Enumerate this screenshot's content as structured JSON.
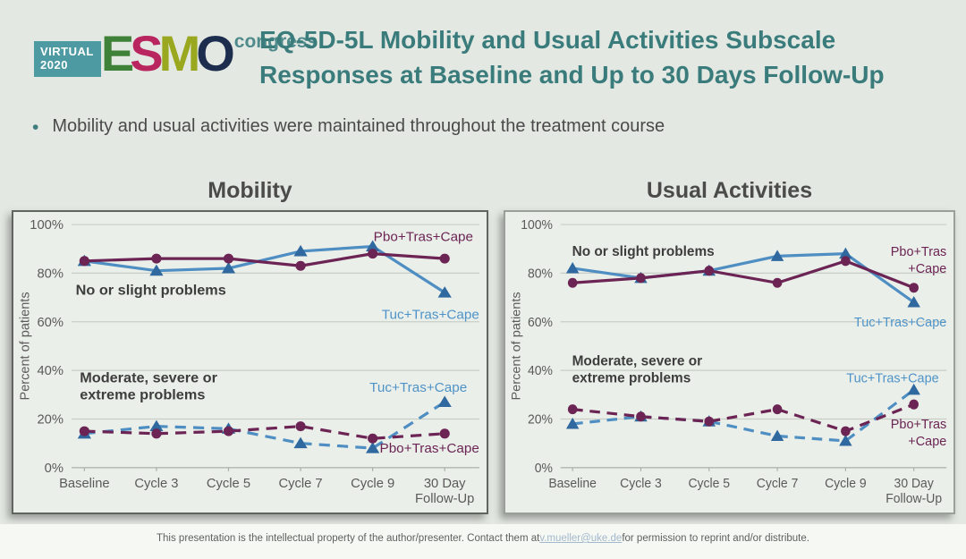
{
  "logo": {
    "virtual_label": "VIRTUAL",
    "year": "2020",
    "esmo_letters": [
      {
        "char": "E",
        "color": "#3f8138"
      },
      {
        "char": "S",
        "color": "#b8255f"
      },
      {
        "char": "M",
        "color": "#9aa81f"
      },
      {
        "char": "O",
        "color": "#1d2d4e"
      }
    ],
    "congress_label": "congress"
  },
  "header": {
    "title_line1": "EQ-5D-5L Mobility and Usual Activities Subscale",
    "title_line2": "Responses at Baseline and Up to 30 Days Follow-Up"
  },
  "bullet": {
    "marker": "•",
    "text": "Mobility and usual activities were maintained throughout the treatment course"
  },
  "colors": {
    "maroon": "#6b2454",
    "blue_line": "#4e8ec2",
    "blue_marker": "#2f699f",
    "blue_label": "#4e93c8",
    "dark_text": "#3d3d3d",
    "axis_text": "#5a5a5a",
    "grid": "#c8cec7",
    "axis": "#a9afa8",
    "teal_accent": "#3a7b7c",
    "slide_bg": "#e4e8e2",
    "panel_bg": "#ebefe9"
  },
  "chart_data": [
    {
      "type": "line",
      "title": "Mobility",
      "xlabel": "",
      "ylabel": "Percent of patients",
      "ylim": [
        0,
        100
      ],
      "yticks": [
        0,
        20,
        40,
        60,
        80,
        100
      ],
      "ytick_suffix": "%",
      "grid": true,
      "legend_position": "inline-labels",
      "categories": [
        "Baseline",
        "Cycle 3",
        "Cycle 5",
        "Cycle 7",
        "Cycle 9",
        "30 Day\nFollow-Up"
      ],
      "series": [
        {
          "name": "Tuc+Tras+Cape",
          "group": "No or slight problems",
          "style": "solid",
          "marker": "triangle",
          "color_key": "blue",
          "values": [
            85,
            81,
            82,
            89,
            91,
            72
          ]
        },
        {
          "name": "Pbo+Tras+Cape",
          "group": "No or slight problems",
          "style": "solid",
          "marker": "circle",
          "color_key": "maroon",
          "values": [
            85,
            86,
            86,
            83,
            88,
            86
          ]
        },
        {
          "name": "Tuc+Tras+Cape",
          "group": "Moderate, severe or extreme problems",
          "style": "dashed",
          "marker": "triangle",
          "color_key": "blue",
          "values": [
            14,
            17,
            16,
            10,
            8,
            27
          ]
        },
        {
          "name": "Pbo+Tras+Cape",
          "group": "Moderate, severe or extreme problems",
          "style": "dashed",
          "marker": "circle",
          "color_key": "maroon",
          "values": [
            15,
            14,
            15,
            17,
            12,
            14
          ]
        }
      ],
      "annotations": [
        {
          "text": "No or slight problems",
          "x": 0.01,
          "y": 73,
          "align": "start",
          "bold": true,
          "color_key": "dark_text"
        },
        {
          "text": "Moderate, severe or\nextreme problems",
          "x": 0.02,
          "y": 37,
          "align": "start",
          "bold": true,
          "color_key": "dark_text"
        },
        {
          "text": "Pbo+Tras+Cape",
          "x": 0.985,
          "y": 95,
          "align": "end",
          "bold": false,
          "color_key": "maroon"
        },
        {
          "text": "Tuc+Tras+Cape",
          "x": 1.0,
          "y": 63,
          "align": "end",
          "bold": false,
          "color_key": "blue_label"
        },
        {
          "text": "Tuc+Tras+Cape",
          "x": 0.97,
          "y": 33,
          "align": "end",
          "bold": false,
          "color_key": "blue_label"
        },
        {
          "text": "Pbo+Tras+Cape",
          "x": 1.0,
          "y": 8,
          "align": "end",
          "bold": false,
          "color_key": "maroon"
        }
      ]
    },
    {
      "type": "line",
      "title": "Usual Activities",
      "xlabel": "",
      "ylabel": "Percent of patients",
      "ylim": [
        0,
        100
      ],
      "yticks": [
        0,
        20,
        40,
        60,
        80,
        100
      ],
      "ytick_suffix": "%",
      "grid": true,
      "legend_position": "inline-labels",
      "categories": [
        "Baseline",
        "Cycle 3",
        "Cycle 5",
        "Cycle 7",
        "Cycle 9",
        "30 Day\nFollow-Up"
      ],
      "series": [
        {
          "name": "Tuc+Tras+Cape",
          "group": "No or slight problems",
          "style": "solid",
          "marker": "triangle",
          "color_key": "blue",
          "values": [
            82,
            78,
            81,
            87,
            88,
            68
          ]
        },
        {
          "name": "Pbo+Tras+Cape",
          "group": "No or slight problems",
          "style": "solid",
          "marker": "circle",
          "color_key": "maroon",
          "values": [
            76,
            78,
            81,
            76,
            85,
            74
          ]
        },
        {
          "name": "Tuc+Tras+Cape",
          "group": "Moderate, severe or extreme problems",
          "style": "dashed",
          "marker": "triangle",
          "color_key": "blue",
          "values": [
            18,
            21,
            19,
            13,
            11,
            32
          ]
        },
        {
          "name": "Pbo+Tras+Cape",
          "group": "Moderate, severe or extreme problems",
          "style": "dashed",
          "marker": "circle",
          "color_key": "maroon",
          "values": [
            24,
            21,
            19,
            24,
            15,
            26
          ]
        }
      ],
      "annotations": [
        {
          "text": "No or slight problems",
          "x": 0.03,
          "y": 89,
          "align": "start",
          "bold": true,
          "color_key": "dark_text"
        },
        {
          "text": "Moderate, severe or\nextreme problems",
          "x": 0.03,
          "y": 44,
          "align": "start",
          "bold": true,
          "color_key": "dark_text"
        },
        {
          "text": "Pbo+Tras\n+Cape",
          "x": 1.0,
          "y": 89,
          "align": "end",
          "bold": false,
          "color_key": "maroon"
        },
        {
          "text": "Tuc+Tras+Cape",
          "x": 1.0,
          "y": 60,
          "align": "end",
          "bold": false,
          "color_key": "blue_label"
        },
        {
          "text": "Tuc+Tras+Cape",
          "x": 0.98,
          "y": 37,
          "align": "end",
          "bold": false,
          "color_key": "blue_label"
        },
        {
          "text": "Pbo+Tras\n+Cape",
          "x": 1.0,
          "y": 18,
          "align": "end",
          "bold": false,
          "color_key": "maroon"
        }
      ]
    }
  ],
  "footer": {
    "text_before_link": "This presentation is the intellectual property of the author/presenter. Contact them at ",
    "link_text": "v.mueller@uke.de",
    "text_after_link": " for permission to reprint and/or distribute."
  }
}
